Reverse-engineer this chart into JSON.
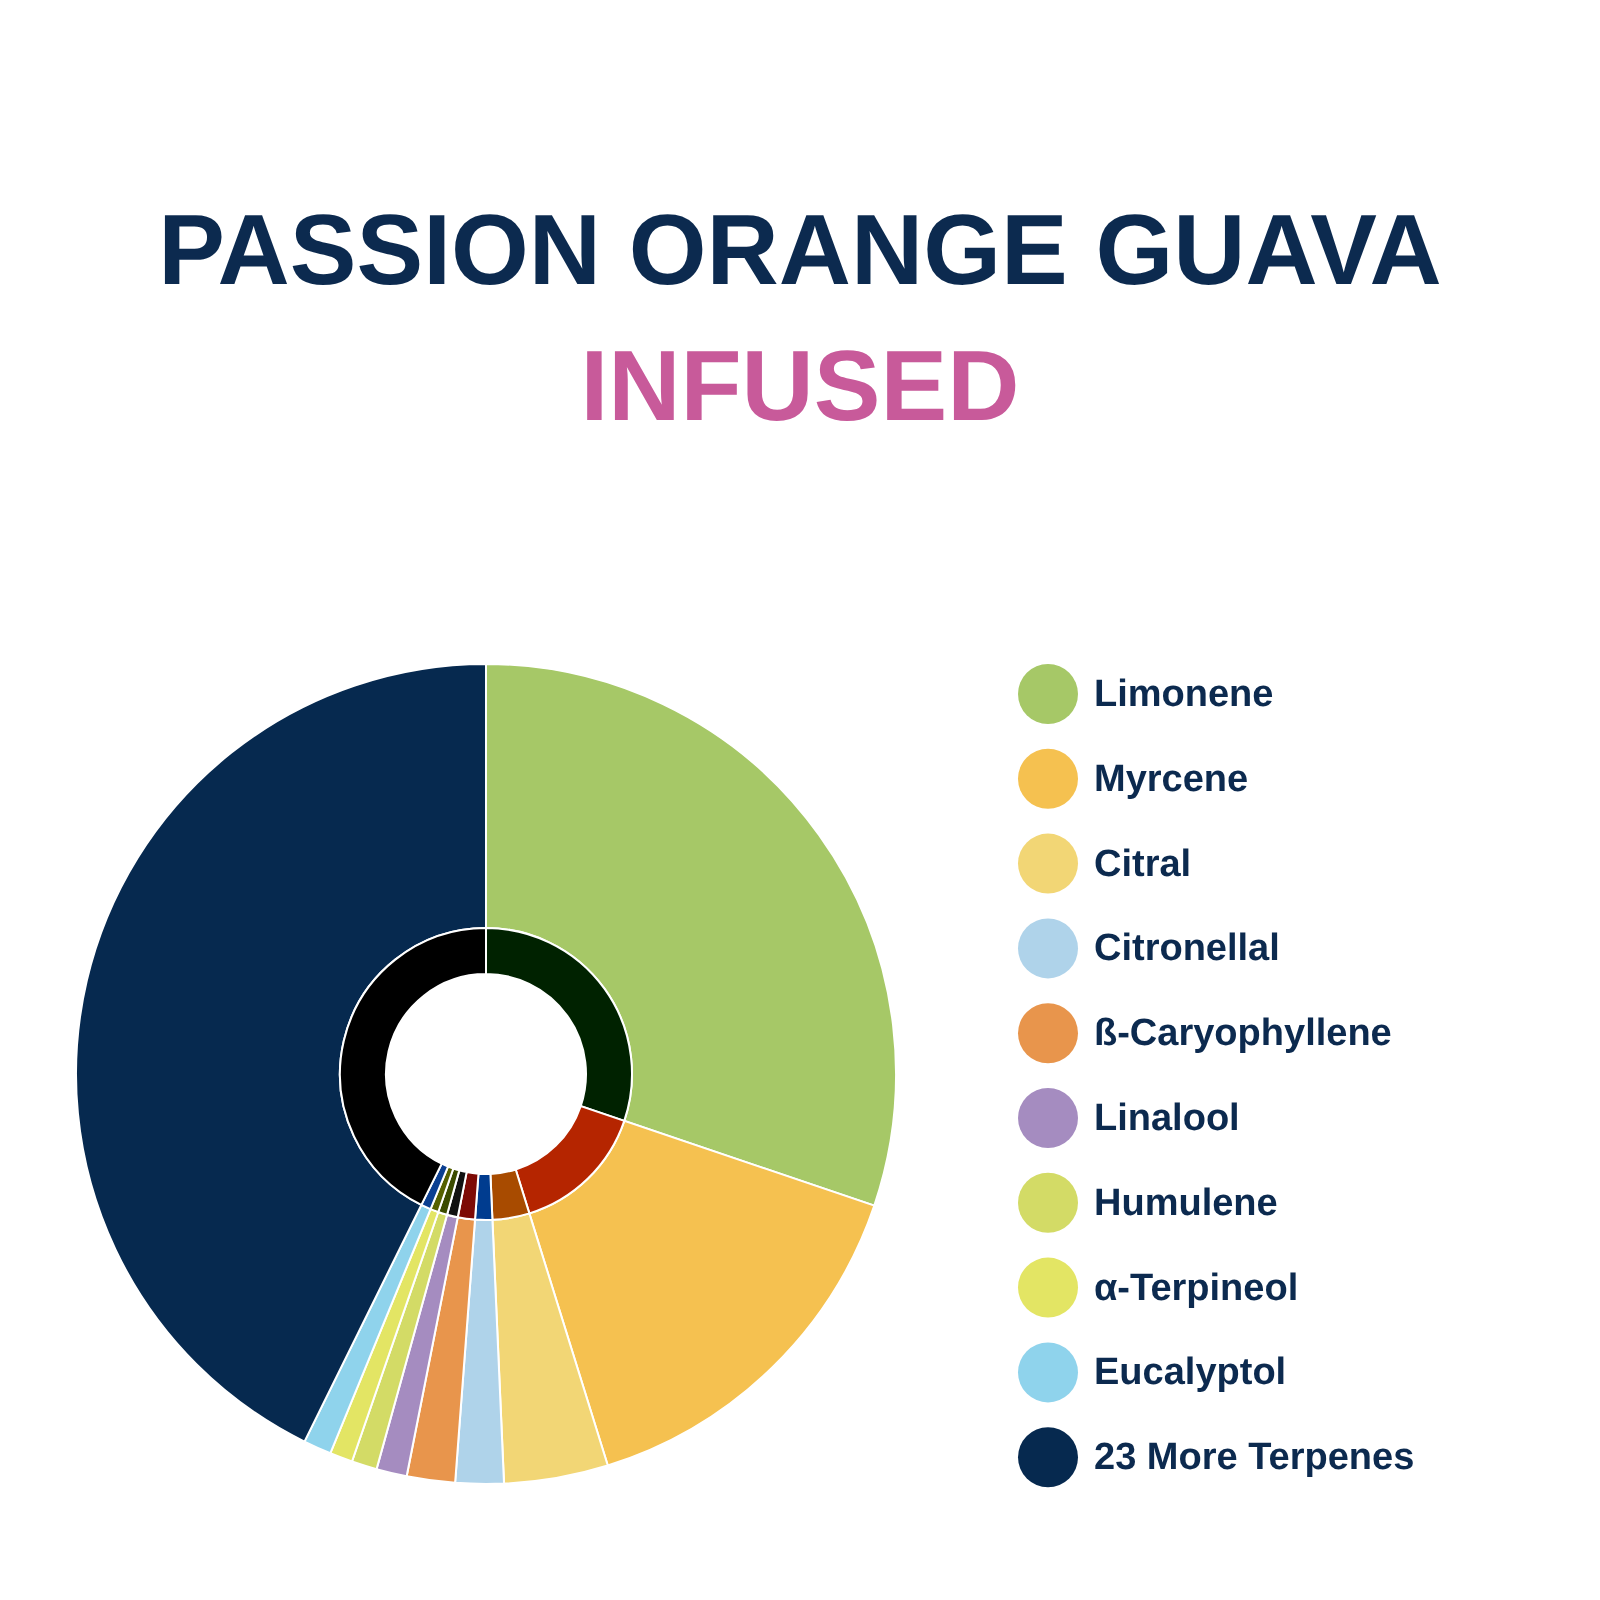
{
  "chart_data": {
    "type": "donut",
    "title": "PASSION ORANGE GUAVA",
    "subtitle": "INFUSED",
    "categories": [
      "Limonene",
      "Myrcene",
      "Citral",
      "Citronellal",
      "ß-Caryophyllene",
      "Linalool",
      "Humulene",
      "α-Terpineol",
      "Eucalyptol",
      "23 More Terpenes"
    ],
    "series": [
      {
        "values": [
          30.2,
          15.0,
          4.1,
          1.9,
          1.9,
          1.2,
          1.0,
          0.9,
          1.1,
          42.7
        ],
        "colors": [
          "#a6c867",
          "#f5c150",
          "#f2d675",
          "#afd3ea",
          "#e8954c",
          "#a58cc0",
          "#d3db66",
          "#e3e564",
          "#8fd3ec",
          "#06294f"
        ]
      },
      {
        "values": [
          30.2,
          15.0,
          4.1,
          1.9,
          1.9,
          1.2,
          1.0,
          0.9,
          1.1,
          42.7
        ],
        "colors": [
          "#002200",
          "#b52500",
          "#a84b00",
          "#003c8f",
          "#7d0a05",
          "#111111",
          "#3b4b00",
          "#556000",
          "#0b3f91",
          "#000000"
        ]
      }
    ],
    "legend": "right"
  }
}
